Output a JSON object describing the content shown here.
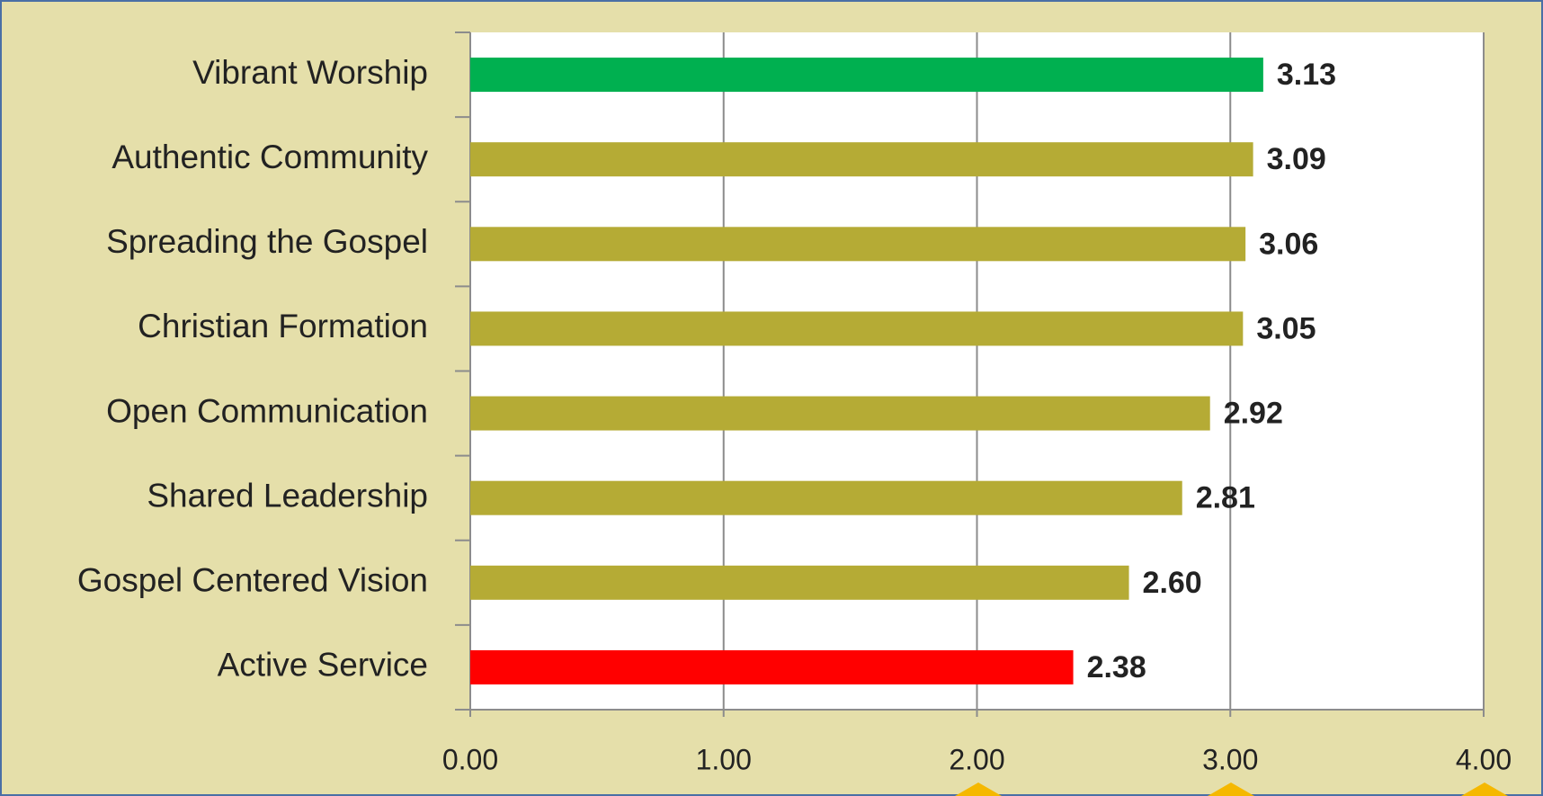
{
  "chart_data": {
    "type": "barh",
    "categories": [
      "Vibrant Worship",
      "Authentic Community",
      "Spreading the Gospel",
      "Christian Formation",
      "Open Communication",
      "Shared Leadership",
      "Gospel Centered Vision",
      "Active Service"
    ],
    "values": [
      3.13,
      3.09,
      3.06,
      3.05,
      2.92,
      2.81,
      2.6,
      2.38
    ],
    "value_labels": [
      "3.13",
      "3.09",
      "3.06",
      "3.05",
      "2.92",
      "2.81",
      "2.60",
      "2.38"
    ],
    "colors": [
      "#00b050",
      "#b5ab35",
      "#b5ab35",
      "#b5ab35",
      "#b5ab35",
      "#b5ab35",
      "#b5ab35",
      "#ff0000"
    ],
    "xlim": [
      0,
      4
    ],
    "xticks": [
      {
        "value": 0,
        "label": "0.00"
      },
      {
        "value": 1,
        "label": "1.00"
      },
      {
        "value": 2,
        "label": "2.00"
      },
      {
        "value": 3,
        "label": "3.00"
      },
      {
        "value": 4,
        "label": "4.00"
      }
    ],
    "grid": true
  }
}
